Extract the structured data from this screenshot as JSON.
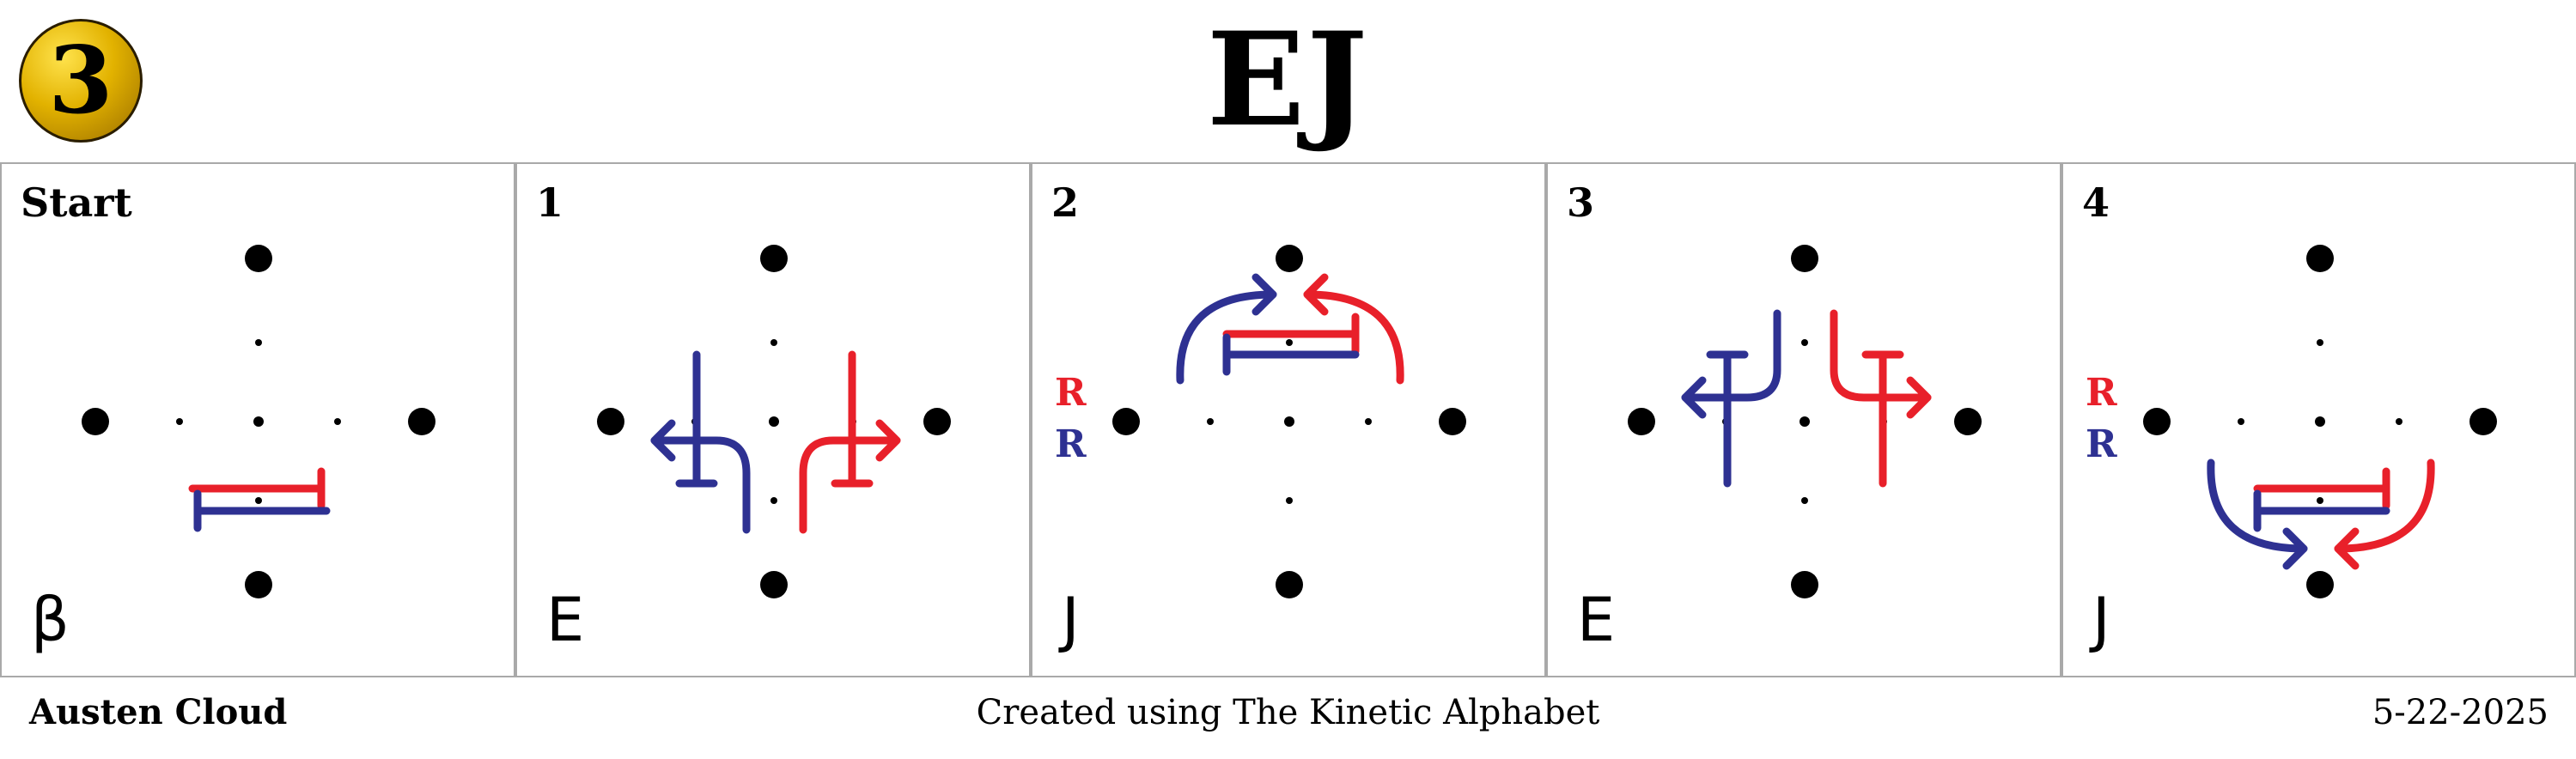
{
  "header": {
    "badge_number": "3",
    "title": "EJ"
  },
  "panels": [
    {
      "label": "Start",
      "letter": "β"
    },
    {
      "label": "1",
      "letter": "E"
    },
    {
      "label": "2",
      "letter": "J",
      "rotation_labels": [
        "R",
        "R"
      ]
    },
    {
      "label": "3",
      "letter": "E"
    },
    {
      "label": "4",
      "letter": "J",
      "rotation_labels": [
        "R",
        "R"
      ]
    }
  ],
  "colors": {
    "red_hand": "#e8202a",
    "blue_hand": "#2e3192",
    "dot": "#000000",
    "panel_border": "#a9a9a9",
    "badge_gold": "#e2b200"
  },
  "footer": {
    "author": "Austen Cloud",
    "credit": "Created using The Kinetic Alphabet",
    "date": "5-22-2025"
  }
}
